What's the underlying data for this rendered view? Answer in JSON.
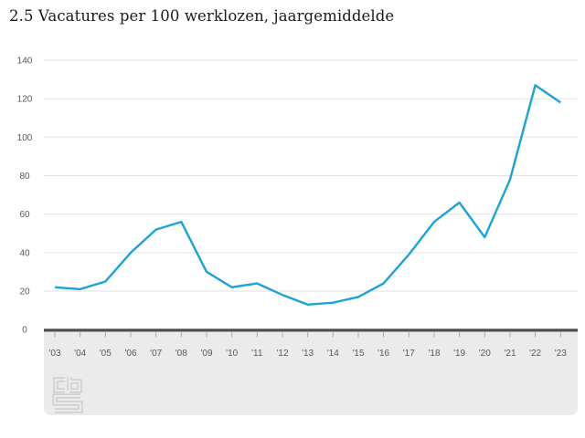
{
  "page": {
    "background": "#ffffff"
  },
  "chart_data": {
    "type": "line",
    "title": "2.5 Vacatures per 100 werklozen, jaargemiddelde",
    "categories": [
      "'03",
      "'04",
      "'05",
      "'06",
      "'07",
      "'08",
      "'09",
      "'10",
      "'11",
      "'12",
      "'13",
      "'14",
      "'15",
      "'16",
      "'17",
      "'18",
      "'19",
      "'20",
      "'21",
      "'22",
      "'23"
    ],
    "series": [
      {
        "name": "Vacatures per 100 werklozen",
        "values": [
          22,
          21,
          25,
          40,
          52,
          56,
          30,
          22,
          24,
          18,
          13,
          14,
          17,
          24,
          39,
          56,
          66,
          48,
          78,
          127,
          118
        ]
      }
    ],
    "xlabel": "",
    "ylabel": "",
    "ylim": [
      0,
      140
    ],
    "yticks": [
      0,
      20,
      40,
      60,
      80,
      100,
      120,
      140
    ],
    "grid": true,
    "legend": "none",
    "line_color": "#1aa3da",
    "axis_color": "#4d4d4f",
    "gridline_color": "#e2e2e2",
    "tick_color": "#ababab",
    "label_color": "#595959",
    "band_color": "#ebebeb",
    "logo_outline_color": "#c6c6c6"
  },
  "footer": {
    "logo_icon": "cbs-logo"
  }
}
